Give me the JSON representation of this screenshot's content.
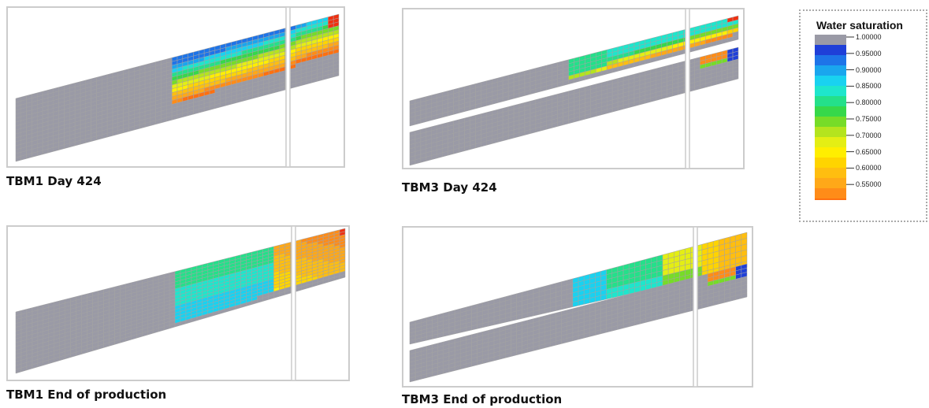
{
  "panels": [
    {
      "caption": "TBM1 Day 424",
      "model": "TBM1",
      "state": "day424"
    },
    {
      "caption": "TBM3 Day 424",
      "model": "TBM3",
      "state": "day424"
    },
    {
      "caption": "TBM1 End of production",
      "model": "TBM1",
      "state": "end"
    },
    {
      "caption": "TBM3 End of production",
      "model": "TBM3",
      "state": "end"
    }
  ],
  "legend": {
    "title": "Water saturation",
    "tick_labels": [
      "1.00000",
      "0.95000",
      "0.90000",
      "0.85000",
      "0.80000",
      "0.75000",
      "0.70000",
      "0.65000",
      "0.60000",
      "0.55000"
    ],
    "colors": [
      "#9a9aa6",
      "#1f3fd8",
      "#1e74e8",
      "#1aa6ee",
      "#19d2f0",
      "#1ee6cc",
      "#24e08a",
      "#36d84a",
      "#76dc28",
      "#b4e41e",
      "#e4ee14",
      "#ffee00",
      "#ffd400",
      "#ffbe10",
      "#ffa818",
      "#ff8c18",
      "#ff7010",
      "#f03010"
    ]
  },
  "grid_color": "#a3a3a3",
  "frame_color": "#cccccc"
}
